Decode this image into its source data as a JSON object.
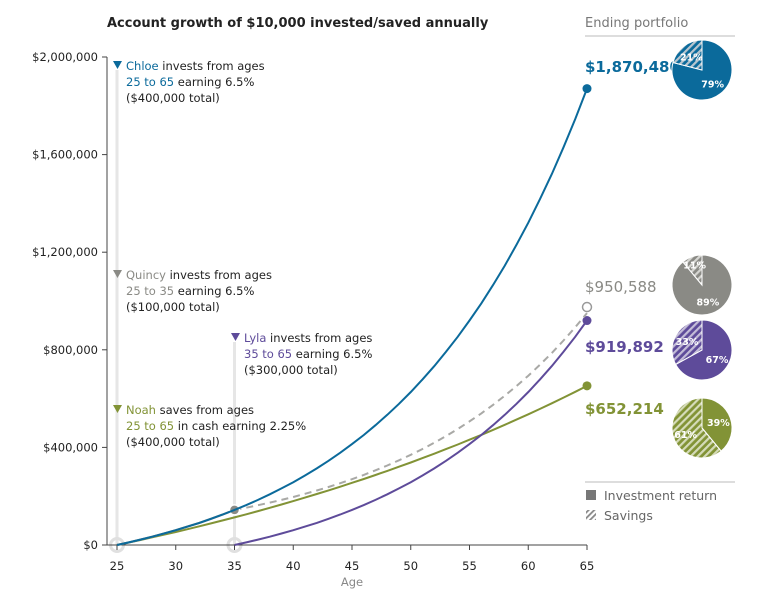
{
  "chart_data": {
    "type": "line",
    "title": "Account growth of $10,000 invested/saved annually",
    "xlabel": "Age",
    "ylabel": "",
    "xlim": [
      25,
      65
    ],
    "ylim": [
      0,
      2000000
    ],
    "x_ticks": [
      25,
      30,
      35,
      40,
      45,
      50,
      55,
      60,
      65
    ],
    "y_ticks": [
      {
        "value": 0,
        "label": "$0"
      },
      {
        "value": 400000,
        "label": "$400,000"
      },
      {
        "value": 800000,
        "label": "$800,000"
      },
      {
        "value": 1200000,
        "label": "$1,200,000"
      },
      {
        "value": 1600000,
        "label": "$1,600,000"
      },
      {
        "value": 2000000,
        "label": "$2,000,000"
      }
    ],
    "grid": false,
    "series": [
      {
        "name": "Chloe",
        "color": "#0b6a9b",
        "style": "solid",
        "start_age": 25,
        "contrib_end_age": 65,
        "rate": 0.065,
        "annual": 10000,
        "ending_value": 1870480,
        "ending_label": "$1,870,480",
        "annotation": {
          "name": "Chloe",
          "verb": " invests from ages",
          "range": "25 to 65",
          "rest": " earning 6.5%",
          "total": "($400,000 total)"
        },
        "pie": {
          "investment_return_pct": 79,
          "savings_pct": 21,
          "return_label": "79%",
          "savings_label": "21%"
        }
      },
      {
        "name": "Quincy",
        "color": "#8a8a85",
        "style": "dashed-after-35",
        "start_age": 25,
        "contrib_end_age": 35,
        "rate": 0.065,
        "annual": 10000,
        "ending_value": 950588,
        "ending_label": "$950,588",
        "annotation": {
          "name": "Quincy",
          "verb": " invests from ages",
          "range": "25 to 35",
          "rest": " earning 6.5%",
          "total": "($100,000 total)"
        },
        "pie": {
          "investment_return_pct": 89,
          "savings_pct": 11,
          "return_label": "89%",
          "savings_label": "11%"
        }
      },
      {
        "name": "Lyla",
        "color": "#5e4b9a",
        "style": "solid",
        "start_age": 35,
        "contrib_end_age": 65,
        "rate": 0.065,
        "annual": 10000,
        "ending_value": 919892,
        "ending_label": "$919,892",
        "annotation": {
          "name": "Lyla",
          "verb": " invests from ages",
          "range": "35 to 65",
          "rest": " earning 6.5%",
          "total": "($300,000 total)"
        },
        "pie": {
          "investment_return_pct": 67,
          "savings_pct": 33,
          "return_label": "67%",
          "savings_label": "33%"
        }
      },
      {
        "name": "Noah",
        "color": "#829336",
        "style": "solid",
        "start_age": 25,
        "contrib_end_age": 65,
        "rate": 0.0225,
        "annual": 10000,
        "ending_value": 652214,
        "ending_label": "$652,214",
        "annotation": {
          "name": "Noah",
          "verb": " saves from ages",
          "range": "25 to 65",
          "rest": " in cash earning 2.25%",
          "total": "($400,000 total)"
        },
        "pie": {
          "investment_return_pct": 39,
          "savings_pct": 61,
          "return_label": "39%",
          "savings_label": "61%"
        }
      }
    ],
    "panel_title": "Ending portfolio",
    "legend": [
      {
        "label": "Investment return",
        "swatch": "solid"
      },
      {
        "label": "Savings",
        "swatch": "hatched"
      }
    ],
    "legend_position": "bottom-right"
  }
}
